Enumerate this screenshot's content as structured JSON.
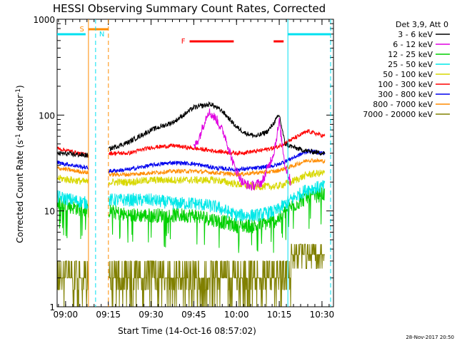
{
  "chart_data": {
    "type": "line",
    "title": "HESSI Observing Summary Count Rates, Corrected",
    "xlabel": "Start Time (14-Oct-16 08:57:02)",
    "ylabel_parts": [
      "Corrected Count Rate (s",
      "-1",
      " detector",
      "-1",
      ")"
    ],
    "timestamp": "28-Nov-2017 20:50",
    "y_scale": "log",
    "ylim": [
      1,
      1000
    ],
    "xlim": [
      "08:57:02",
      "10:34:00"
    ],
    "x_ticks": [
      "09:00",
      "09:15",
      "09:30",
      "09:45",
      "10:00",
      "10:15",
      "10:30"
    ],
    "y_ticks": [
      "1",
      "10",
      "100",
      "1000"
    ],
    "legend_header": "Det 3,9, Att 0",
    "legend_position": "right",
    "colors": {
      "3-6": "#000000",
      "6-12": "#e000e0",
      "12-25": "#00d000",
      "25-50": "#00e8e8",
      "50-100": "#d8d800",
      "100-300": "#ff0000",
      "300-800": "#0000ee",
      "800-7000": "#ff8c00",
      "7000-20000": "#808000",
      "saa": "#ff8c00",
      "night": "#00e0f0",
      "flare": "#ff0000"
    },
    "series": [
      {
        "name": "3 - 6 keV",
        "key": "3-6",
        "x_min": [
          0,
          11,
          18,
          25,
          33,
          41,
          48,
          54,
          58,
          63,
          66,
          70,
          74,
          78,
          80,
          84,
          88,
          94
        ],
        "values": [
          40,
          38,
          44,
          52,
          70,
          85,
          120,
          130,
          110,
          75,
          65,
          60,
          68,
          100,
          50,
          45,
          42,
          40
        ]
      },
      {
        "name": "6 - 12 keV",
        "key": "6-12",
        "x_min": [
          48,
          50,
          53,
          56,
          59,
          62,
          65,
          68,
          72,
          76,
          78,
          80,
          82
        ],
        "values": [
          45,
          60,
          110,
          90,
          60,
          30,
          20,
          18,
          20,
          40,
          85,
          30,
          20
        ]
      },
      {
        "name": "12 - 25 keV",
        "key": "12-25",
        "x_min": [
          0,
          11,
          18,
          25,
          33,
          41,
          48,
          56,
          63,
          70,
          77,
          82,
          88,
          94
        ],
        "values": [
          12,
          10,
          10,
          9,
          9,
          9,
          9,
          8,
          7,
          7,
          8,
          11,
          14,
          15
        ]
      },
      {
        "name": "25 - 50 keV",
        "key": "25-50",
        "x_min": [
          0,
          11,
          18,
          25,
          33,
          41,
          48,
          56,
          63,
          70,
          77,
          82,
          88,
          94
        ],
        "values": [
          14,
          12,
          13,
          13,
          13,
          12,
          12,
          11,
          9,
          9,
          10,
          13,
          17,
          18
        ]
      },
      {
        "name": "50 - 100 keV",
        "key": "50-100",
        "x_min": [
          0,
          11,
          18,
          25,
          33,
          41,
          48,
          56,
          63,
          70,
          77,
          82,
          88,
          94
        ],
        "values": [
          22,
          20,
          20,
          20,
          21,
          21,
          21,
          21,
          19,
          18,
          18,
          20,
          24,
          25
        ]
      },
      {
        "name": "100 - 300 keV",
        "key": "100-300",
        "x_min": [
          0,
          11,
          18,
          25,
          33,
          41,
          48,
          56,
          63,
          70,
          77,
          82,
          88,
          94
        ],
        "values": [
          45,
          38,
          40,
          40,
          46,
          48,
          45,
          42,
          40,
          42,
          46,
          55,
          68,
          60
        ]
      },
      {
        "name": "300 - 800 keV",
        "key": "300-800",
        "x_min": [
          0,
          11,
          18,
          25,
          33,
          41,
          48,
          56,
          63,
          70,
          77,
          82,
          88,
          94
        ],
        "values": [
          32,
          28,
          26,
          27,
          30,
          32,
          31,
          28,
          27,
          28,
          30,
          35,
          42,
          40
        ]
      },
      {
        "name": "800 - 7000 keV",
        "key": "800-7000",
        "x_min": [
          0,
          11,
          18,
          25,
          33,
          41,
          48,
          56,
          63,
          70,
          77,
          82,
          88,
          94
        ],
        "values": [
          28,
          25,
          24,
          24,
          25,
          26,
          26,
          25,
          24,
          25,
          26,
          29,
          34,
          33
        ]
      },
      {
        "name": "7000 - 20000 keV",
        "key": "7000-20000",
        "x_min": [
          0,
          11,
          18,
          25,
          33,
          41,
          48,
          56,
          63,
          70,
          77,
          82,
          88,
          94
        ],
        "values": [
          2,
          1.5,
          2,
          2,
          2,
          2,
          2,
          2,
          2,
          2,
          2,
          3,
          4,
          3.5
        ]
      }
    ],
    "saa_label": "S",
    "night_label": "N",
    "flare_label": "F"
  }
}
